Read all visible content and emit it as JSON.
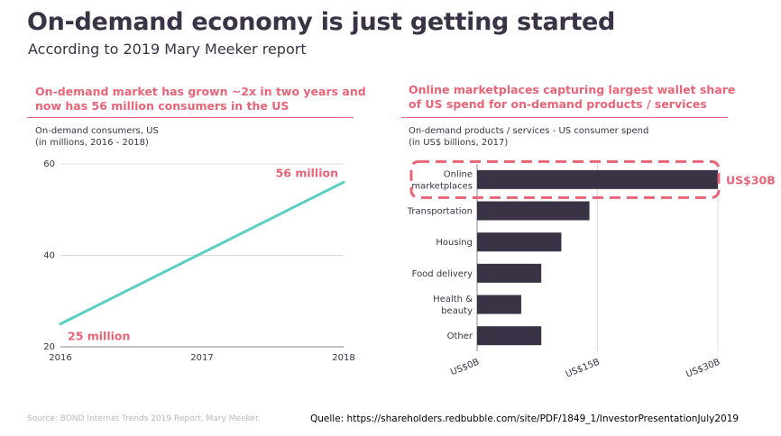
{
  "header": {
    "title": "On-demand economy is just getting started",
    "subtitle": "According to 2019 Mary Meeker report"
  },
  "left_panel": {
    "title_lines": [
      "On-demand market has grown ~2x in two years and",
      "now has 56 million consumers in the US"
    ],
    "note_lines": [
      "On-demand consumers, US",
      "(in millions, 2016 - 2018)"
    ]
  },
  "right_panel": {
    "title_lines": [
      "Online marketplaces capturing largest wallet share",
      "of US spend for on-demand products / services"
    ],
    "note_lines": [
      "On-demand products / services - US consumer spend",
      "(in US$ billions, 2017)"
    ]
  },
  "footer": {
    "source": "Source: BOND Internet Trends 2019 Report, Mary Meeker.",
    "quelle": "Quelle: https://shareholders.redbubble.com/site/PDF/1849_1/InvestorPresentationJuly2019"
  },
  "colors": {
    "accent": "#e86477",
    "line": "#5ccfc4",
    "bar": "#3a3345",
    "text": "#3a3345"
  },
  "chart_data": [
    {
      "type": "line",
      "x": [
        2016,
        2018
      ],
      "x_ticks": [
        "2016",
        "2017",
        "2018"
      ],
      "y_ticks": [
        "20",
        "40",
        "60"
      ],
      "ylim": [
        20,
        60
      ],
      "series": [
        {
          "values": [
            25,
            56
          ]
        }
      ],
      "annotations": [
        "25 million",
        "56 million"
      ],
      "grid": "horizontal"
    },
    {
      "type": "bar",
      "orientation": "horizontal",
      "categories": [
        [
          "Online",
          "marketplaces"
        ],
        [
          "Transportation"
        ],
        [
          "Housing"
        ],
        [
          "Food delivery"
        ],
        [
          "Health &",
          "beauty"
        ],
        [
          "Other"
        ]
      ],
      "values": [
        30,
        14,
        10.5,
        8,
        5.5,
        8
      ],
      "x_ticks": [
        "US$0B",
        "US$15B",
        "US$30B"
      ],
      "xlim": [
        0,
        30
      ],
      "highlight": {
        "category": "Online marketplaces",
        "label": "US$30B"
      },
      "grid": "vertical"
    }
  ]
}
